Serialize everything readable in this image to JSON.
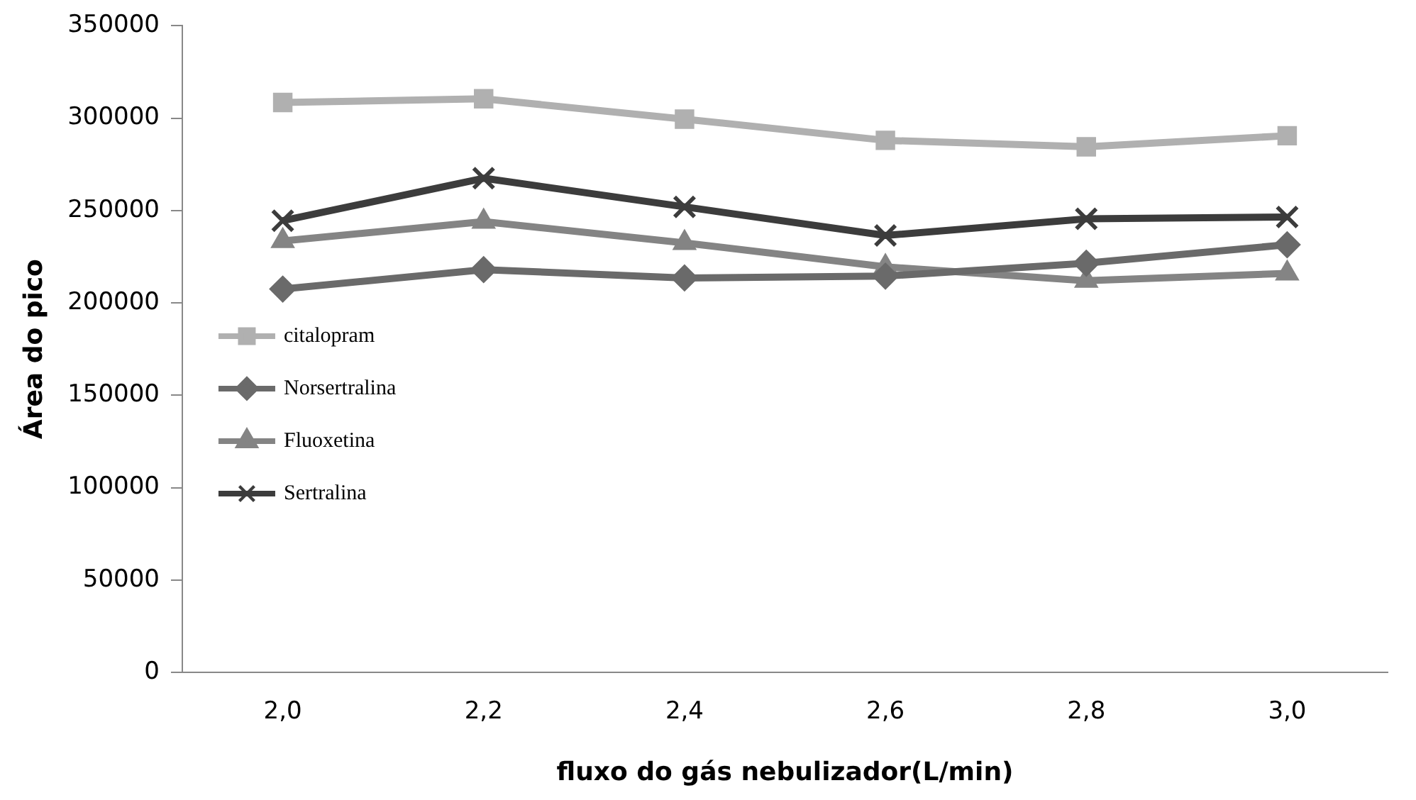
{
  "chart_data": {
    "type": "line",
    "xlabel": "fluxo do gás nebulizador(L/min)",
    "ylabel": "Área do pico",
    "categories": [
      "2,0",
      "2,2",
      "2,4",
      "2,6",
      "2,8",
      "3,0"
    ],
    "series": [
      {
        "name": "citalopram",
        "color": "#b0b0b0",
        "marker": "square",
        "values": [
          308500,
          310500,
          299500,
          288000,
          284500,
          290500
        ]
      },
      {
        "name": "Norsertralina",
        "color": "#6a6a6a",
        "marker": "diamond",
        "values": [
          207500,
          218000,
          213500,
          214500,
          221500,
          231500
        ]
      },
      {
        "name": "Fluoxetina",
        "color": "#848484",
        "marker": "triangle",
        "values": [
          233500,
          244000,
          232500,
          219500,
          212000,
          216000
        ]
      },
      {
        "name": "Sertralina",
        "color": "#3c3c3c",
        "marker": "cross",
        "values": [
          244500,
          267500,
          252000,
          236500,
          245500,
          246500
        ]
      }
    ],
    "ylim": [
      0,
      350000
    ],
    "yticks": [
      0,
      50000,
      100000,
      150000,
      200000,
      250000,
      300000,
      350000
    ],
    "grid": false,
    "legend": "left",
    "line_style": "solid"
  }
}
